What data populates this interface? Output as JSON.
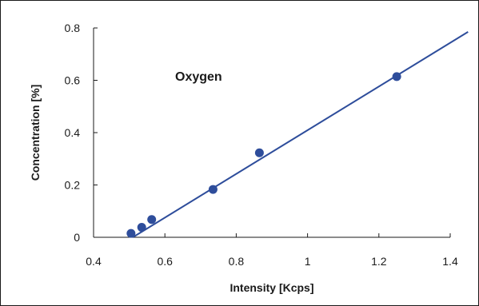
{
  "chart_data": {
    "type": "scatter",
    "title": "",
    "annotation": "Oxygen",
    "xlabel": "Intensity [Kcps]",
    "ylabel": "Concentration [%]",
    "xlim": [
      0.4,
      1.4
    ],
    "ylim": [
      0,
      0.8
    ],
    "x_ticks": [
      0.4,
      0.6,
      0.8,
      1,
      1.2,
      1.4
    ],
    "y_ticks": [
      0,
      0.2,
      0.4,
      0.6,
      0.8
    ],
    "x_tick_labels": [
      "0.4",
      "0.6",
      "0.8",
      "1",
      "1.2",
      "1.4"
    ],
    "y_tick_labels": [
      "0",
      "0.2",
      "0.4",
      "0.6",
      "0.8"
    ],
    "grid": false,
    "legend": "none",
    "series": [
      {
        "marker_color": "#2e4d9b",
        "points": [
          {
            "x": 0.505,
            "y": 0.015
          },
          {
            "x": 0.535,
            "y": 0.038
          },
          {
            "x": 0.563,
            "y": 0.068
          },
          {
            "x": 0.735,
            "y": 0.183
          },
          {
            "x": 0.865,
            "y": 0.323
          },
          {
            "x": 1.25,
            "y": 0.614
          }
        ]
      }
    ],
    "trendline": {
      "color": "#2e4d9b",
      "from": {
        "x": 0.51,
        "y": 0.0
      },
      "to": {
        "x": 1.45,
        "y": 0.785
      }
    }
  }
}
